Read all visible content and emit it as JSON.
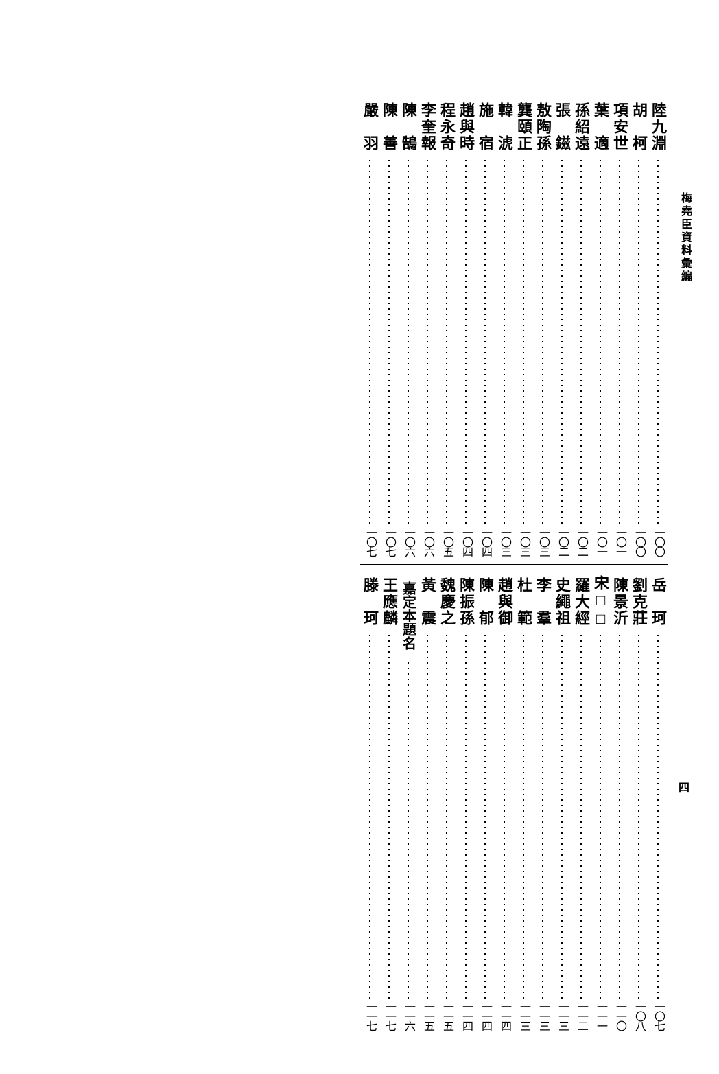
{
  "running_head": "梅堯臣資料彙編",
  "page_marker": "四",
  "columns": [
    {
      "top": {
        "name": "陸九淵",
        "page": "一〇〇",
        "cls": ""
      },
      "bottom": {
        "name": "岳　珂",
        "page": "一〇七",
        "cls": ""
      }
    },
    {
      "top": {
        "name": "胡　柯",
        "page": "一〇〇",
        "cls": ""
      },
      "bottom": {
        "name": "劉克莊",
        "page": "一〇八",
        "cls": ""
      }
    },
    {
      "top": {
        "name": "項安世",
        "page": "一〇一",
        "cls": ""
      },
      "bottom": {
        "name": "陳景沂",
        "page": "一一〇",
        "cls": ""
      }
    },
    {
      "top": {
        "name": "葉　適",
        "page": "一〇一",
        "cls": ""
      },
      "bottom": {
        "name": "宋□□",
        "page": "一一一",
        "cls": ""
      }
    },
    {
      "top": {
        "name": "孫紹遠",
        "page": "一〇二",
        "cls": ""
      },
      "bottom": {
        "name": "羅大經",
        "page": "一一二",
        "cls": ""
      }
    },
    {
      "top": {
        "name": "張　鎡",
        "page": "一〇二",
        "cls": ""
      },
      "bottom": {
        "name": "史繩祖",
        "page": "一一三",
        "cls": ""
      }
    },
    {
      "top": {
        "name": "敖陶孫",
        "page": "一〇三",
        "cls": ""
      },
      "bottom": {
        "name": "李　羣",
        "page": "一一三",
        "cls": ""
      }
    },
    {
      "top": {
        "name": "龔頤正",
        "page": "一〇三",
        "cls": ""
      },
      "bottom": {
        "name": "杜　範",
        "page": "一一三",
        "cls": ""
      }
    },
    {
      "top": {
        "name": "韓　淲",
        "page": "一〇三",
        "cls": ""
      },
      "bottom": {
        "name": "趙與御",
        "page": "一一四",
        "cls": ""
      }
    },
    {
      "top": {
        "name": "施　宿",
        "page": "一〇四",
        "cls": ""
      },
      "bottom": {
        "name": "陳　郁",
        "page": "一一四",
        "cls": ""
      }
    },
    {
      "top": {
        "name": "趙與時",
        "page": "一〇四",
        "cls": ""
      },
      "bottom": {
        "name": "陳振孫",
        "page": "一一四",
        "cls": ""
      }
    },
    {
      "top": {
        "name": "程永奇",
        "page": "一〇五",
        "cls": ""
      },
      "bottom": {
        "name": "魏慶之",
        "page": "一一五",
        "cls": ""
      }
    },
    {
      "top": {
        "name": "李奎報",
        "page": "一〇六",
        "cls": ""
      },
      "bottom": {
        "name": "黃　震",
        "page": "一一五",
        "cls": ""
      }
    },
    {
      "top": {
        "name": "陳　鵠",
        "page": "一〇六",
        "cls": ""
      },
      "bottom": {
        "name": "嘉定本題名",
        "page": "一一六",
        "cls": ""
      }
    },
    {
      "top": {
        "name": "陳　善",
        "page": "一〇七",
        "cls": ""
      },
      "bottom": {
        "name": "王應麟",
        "page": "一一七",
        "cls": ""
      }
    },
    {
      "top": {
        "name": "嚴　羽",
        "page": "一〇七",
        "cls": ""
      },
      "bottom": {
        "name": "滕　珂",
        "page": "一一七",
        "cls": ""
      }
    }
  ]
}
